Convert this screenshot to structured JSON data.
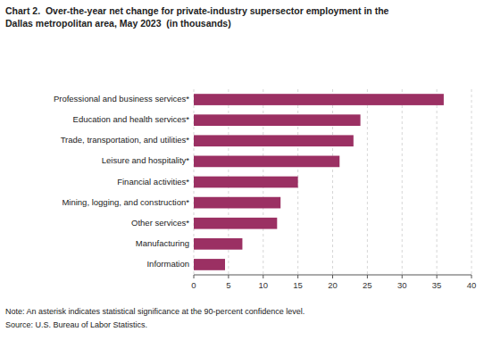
{
  "chart_data": {
    "type": "bar",
    "orientation": "horizontal",
    "title": "Chart 2.  Over-the-year net change for private-industry supersector employment in the\nDallas metropolitan area, May 2023  (in thousands)",
    "categories": [
      "Information",
      "Manufacturing",
      "Other services*",
      "Mining, logging, and construction*",
      "Financial activities*",
      "Leisure and hospitality*",
      "Trade, transportation, and utilities*",
      "Education and health services*",
      "Professional and business services*"
    ],
    "values": [
      4.5,
      7.0,
      12.0,
      12.5,
      15.0,
      21.0,
      23.0,
      24.0,
      36.0
    ],
    "color": "#9B3063",
    "xlim": [
      0,
      40
    ],
    "xticks": [
      0,
      5,
      10,
      15,
      20,
      25,
      30,
      35,
      40
    ],
    "grid": true,
    "annotations": [
      "Note: An asterisk indicates statistical significance at the 90-percent confidence level.",
      "Source: U.S. Bureau of Labor Statistics."
    ]
  }
}
